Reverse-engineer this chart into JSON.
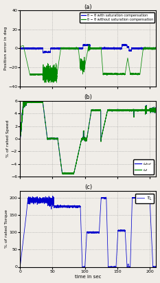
{
  "figsize": [
    2.33,
    4.12
  ],
  "dpi": 100,
  "bg_color": "#f0ede8",
  "panel_a": {
    "label": "(a)",
    "ylabel": "Position error in deg",
    "ylim": [
      -40,
      40
    ],
    "yticks": [
      -40,
      -20,
      0,
      20,
      40
    ],
    "xlim": [
      0,
      210
    ],
    "xticks": [
      0,
      50,
      100,
      150,
      200
    ],
    "legend": [
      "θ − θ̂ with saturation compensation",
      "θ − θ̂ without saturation compensation"
    ]
  },
  "panel_b": {
    "label": "(b)",
    "ylabel": "% of rated Speed",
    "ylim": [
      -6,
      6
    ],
    "yticks": [
      -6,
      -4,
      -2,
      0,
      2,
      4,
      6
    ],
    "xlim": [
      0,
      210
    ],
    "xticks": [
      0,
      50,
      100,
      150,
      200
    ]
  },
  "panel_c": {
    "label": "(c)",
    "ylabel": "% of rated Torque",
    "ylim": [
      0,
      220
    ],
    "yticks": [
      0,
      50,
      100,
      150,
      200
    ],
    "xlim": [
      0,
      210
    ],
    "xticks": [
      0,
      50,
      100,
      150,
      200
    ],
    "xlabel": "time in sec"
  },
  "seed": 0
}
